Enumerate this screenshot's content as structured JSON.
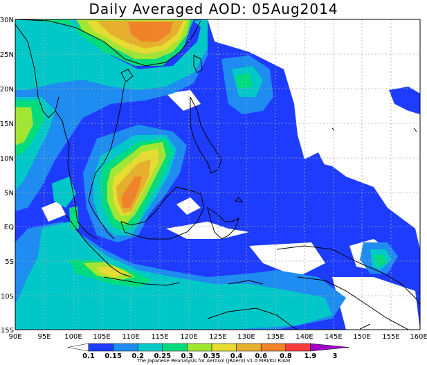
{
  "title": "Daily Averaged AOD: 05Aug2014",
  "credit": "The Japanese Reanalysis for Aerosol (JRAero) v1.0 MRI/KU RIAM",
  "lat_labels": [
    "30N",
    "25N",
    "20N",
    "15N",
    "10N",
    "5N",
    "EQ",
    "5S",
    "10S",
    "15S"
  ],
  "lon_labels": [
    "90E",
    "95E",
    "100E",
    "105E",
    "110E",
    "115E",
    "120E",
    "125E",
    "130E",
    "135E",
    "140E",
    "145E",
    "150E",
    "155E",
    "160E"
  ],
  "colorbar": {
    "labels": [
      "0.1",
      "0.15",
      "0.2",
      "0.25",
      "0.3",
      "0.35",
      "0.4",
      "0.6",
      "0.8",
      "1.9",
      "3"
    ],
    "colors": [
      "#1e3cff",
      "#1e8cf0",
      "#00c8c8",
      "#00dc7c",
      "#a0e632",
      "#e6dc32",
      "#e6af2d",
      "#f08228",
      "#fa3c3c",
      "#a000c8"
    ]
  },
  "chart_data": {
    "type": "heatmap",
    "title": "Daily Averaged AOD: 05Aug2014",
    "x_range": [
      90,
      160
    ],
    "y_range": [
      -15,
      30
    ],
    "levels": [
      0.1,
      0.15,
      0.2,
      0.25,
      0.3,
      0.35,
      0.4,
      0.6,
      0.8,
      1.9,
      3
    ],
    "grid": true
  }
}
